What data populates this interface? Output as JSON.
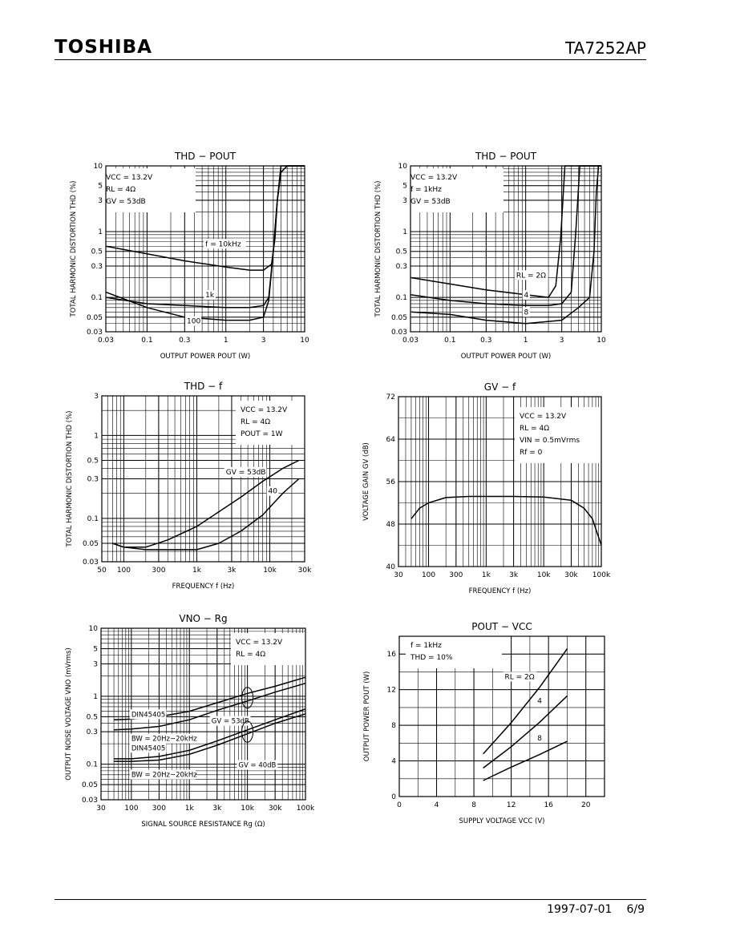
{
  "header": {
    "logo_text": "TOSHIBA",
    "part_number": "TA7252AP"
  },
  "footer": {
    "date": "1997-07-01",
    "page": "6/9"
  },
  "chart_data": [
    {
      "id": "thd-pout-freq",
      "type": "line",
      "title": "THD − POUT",
      "xlabel": "OUTPUT POWER POUT (W)",
      "ylabel": "TOTAL HARMONIC DISTORTION THD (%)",
      "xscale": "log",
      "yscale": "log",
      "xlim": [
        0.03,
        10
      ],
      "ylim": [
        0.03,
        10
      ],
      "xticks": [
        0.03,
        0.1,
        0.3,
        1,
        3,
        10
      ],
      "xtick_labels": [
        "0.03",
        "0.1",
        "0.3",
        "1",
        "3",
        "10"
      ],
      "yticks": [
        0.03,
        0.05,
        0.1,
        0.3,
        0.5,
        1,
        3,
        5,
        10
      ],
      "ytick_labels": [
        "0.03",
        "0.05",
        "0.1",
        "0.3",
        "0.5",
        "1",
        "3",
        "5",
        "10"
      ],
      "conditions": [
        "VCC = 13.2V",
        "RL = 4Ω",
        "GV = 53dB"
      ],
      "series": [
        {
          "name": "f = 10kHz",
          "label_at": [
            0.55,
            0.6
          ],
          "x": [
            0.03,
            0.1,
            0.3,
            1,
            2,
            3,
            3.8,
            4.2,
            4.5,
            5,
            6,
            6.8,
            10
          ],
          "y": [
            0.6,
            0.46,
            0.36,
            0.29,
            0.26,
            0.26,
            0.32,
            0.8,
            3,
            8,
            10,
            10,
            10
          ]
        },
        {
          "name": "1k",
          "label_at": [
            0.55,
            0.1
          ],
          "x": [
            0.03,
            0.1,
            0.3,
            1,
            2,
            3,
            3.5,
            4,
            4.5,
            5,
            6,
            10
          ],
          "y": [
            0.1,
            0.08,
            0.075,
            0.07,
            0.07,
            0.075,
            0.1,
            0.5,
            3,
            8,
            10,
            10
          ]
        },
        {
          "name": "100",
          "label_at": [
            0.32,
            0.04
          ],
          "x": [
            0.03,
            0.1,
            0.3,
            1,
            2,
            3,
            3.5,
            4,
            4.5,
            5,
            10
          ],
          "y": [
            0.12,
            0.07,
            0.05,
            0.045,
            0.045,
            0.05,
            0.09,
            0.5,
            3,
            10,
            10
          ]
        }
      ]
    },
    {
      "id": "thd-pout-load",
      "type": "line",
      "title": "THD − POUT",
      "xlabel": "OUTPUT POWER POUT (W)",
      "ylabel": "TOTAL HARMONIC DISTORTION THD (%)",
      "xscale": "log",
      "yscale": "log",
      "xlim": [
        0.03,
        10
      ],
      "ylim": [
        0.03,
        10
      ],
      "xticks": [
        0.03,
        0.1,
        0.3,
        1,
        3,
        10
      ],
      "xtick_labels": [
        "0.03",
        "0.1",
        "0.3",
        "1",
        "3",
        "10"
      ],
      "yticks": [
        0.03,
        0.05,
        0.1,
        0.3,
        0.5,
        1,
        3,
        5,
        10
      ],
      "ytick_labels": [
        "0.03",
        "0.05",
        "0.1",
        "0.3",
        "0.5",
        "1",
        "3",
        "5",
        "10"
      ],
      "conditions": [
        "VCC = 13.2V",
        "f = 1kHz",
        "GV = 53dB"
      ],
      "series": [
        {
          "name": "RL = 2Ω",
          "label_at": [
            0.75,
            0.2
          ],
          "x": [
            0.03,
            0.1,
            0.3,
            1,
            2,
            2.5,
            2.9,
            3.3,
            4,
            10
          ],
          "y": [
            0.2,
            0.16,
            0.13,
            0.11,
            0.1,
            0.15,
            0.8,
            10,
            10,
            10
          ]
        },
        {
          "name": "4",
          "label_at": [
            0.95,
            0.1
          ],
          "x": [
            0.03,
            0.1,
            0.3,
            1,
            2,
            3,
            4,
            4.6,
            5.2,
            6,
            10
          ],
          "y": [
            0.11,
            0.09,
            0.08,
            0.075,
            0.075,
            0.08,
            0.12,
            1,
            10,
            10,
            10
          ]
        },
        {
          "name": "8",
          "label_at": [
            0.95,
            0.055
          ],
          "x": [
            0.03,
            0.1,
            0.3,
            1,
            3,
            5,
            7,
            8,
            8.6,
            9.2,
            10
          ],
          "y": [
            0.06,
            0.055,
            0.045,
            0.04,
            0.045,
            0.07,
            0.1,
            0.5,
            4,
            10,
            10
          ]
        }
      ]
    },
    {
      "id": "thd-f",
      "type": "line",
      "title": "THD − f",
      "xlabel": "FREQUENCY f (Hz)",
      "ylabel": "TOTAL HARMONIC DISTORTION THD (%)",
      "xscale": "log",
      "yscale": "log",
      "xlim": [
        50,
        30000
      ],
      "ylim": [
        0.03,
        3
      ],
      "xticks": [
        50,
        100,
        300,
        1000,
        3000,
        10000,
        30000
      ],
      "xtick_labels": [
        "50",
        "100",
        "300",
        "1k",
        "3k",
        "10k",
        "30k"
      ],
      "yticks": [
        0.03,
        0.05,
        0.1,
        0.3,
        0.5,
        1,
        3
      ],
      "ytick_labels": [
        "0.03",
        "0.05",
        "0.1",
        "0.3",
        "0.5",
        "1",
        "3"
      ],
      "conditions": [
        "VCC = 13.2V",
        "RL = 4Ω",
        "POUT = 1W"
      ],
      "series": [
        {
          "name": "GV = 53dB",
          "label_at": [
            2500,
            0.34
          ],
          "x": [
            70,
            100,
            200,
            400,
            1000,
            2000,
            4000,
            8000,
            15000,
            25000
          ],
          "y": [
            0.05,
            0.045,
            0.045,
            0.055,
            0.08,
            0.12,
            0.18,
            0.28,
            0.4,
            0.5
          ]
        },
        {
          "name": "40",
          "label_at": [
            9500,
            0.2
          ],
          "x": [
            70,
            100,
            200,
            400,
            1000,
            2000,
            4000,
            8000,
            15000,
            25000
          ],
          "y": [
            0.05,
            0.045,
            0.042,
            0.042,
            0.042,
            0.05,
            0.07,
            0.11,
            0.2,
            0.3
          ]
        }
      ]
    },
    {
      "id": "gv-f",
      "type": "line",
      "title": "GV − f",
      "xlabel": "FREQUENCY f (Hz)",
      "ylabel": "VOLTAGE GAIN GV (dB)",
      "xscale": "log",
      "yscale": "linear",
      "xlim": [
        30,
        100000
      ],
      "ylim": [
        40,
        72
      ],
      "xticks": [
        30,
        100,
        300,
        1000,
        3000,
        10000,
        30000,
        100000
      ],
      "xtick_labels": [
        "30",
        "100",
        "300",
        "1k",
        "3k",
        "10k",
        "30k",
        "100k"
      ],
      "yticks": [
        40,
        48,
        56,
        64,
        72
      ],
      "ytick_labels": [
        "40",
        "48",
        "56",
        "64",
        "72"
      ],
      "conditions": [
        "VCC = 13.2V",
        "RL = 4Ω",
        "VIN = 0.5mVrms",
        "Rf = 0"
      ],
      "series": [
        {
          "name": "",
          "x": [
            50,
            70,
            100,
            200,
            500,
            1000,
            3000,
            10000,
            30000,
            50000,
            70000,
            100000
          ],
          "y": [
            49,
            51,
            52,
            53,
            53.2,
            53.2,
            53.2,
            53.1,
            52.5,
            51,
            49,
            44
          ]
        }
      ]
    },
    {
      "id": "vno-rg",
      "type": "line",
      "title": "VNO − Rg",
      "xlabel": "SIGNAL SOURCE RESISTANCE Rg (Ω)",
      "ylabel": "OUTPUT NOISE VOLTAGE VNO (mVrms)",
      "xscale": "log",
      "yscale": "log",
      "xlim": [
        30,
        100000
      ],
      "ylim": [
        0.03,
        10
      ],
      "xticks": [
        30,
        100,
        300,
        1000,
        3000,
        10000,
        30000,
        100000
      ],
      "xtick_labels": [
        "30",
        "100",
        "300",
        "1k",
        "3k",
        "10k",
        "30k",
        "100k"
      ],
      "yticks": [
        0.03,
        0.05,
        0.1,
        0.3,
        0.5,
        1,
        3,
        5,
        10
      ],
      "ytick_labels": [
        "0.03",
        "0.05",
        "0.1",
        "0.3",
        "0.5",
        "1",
        "3",
        "5",
        "10"
      ],
      "conditions": [
        "VCC = 13.2V",
        "RL = 4Ω"
      ],
      "annotations": [
        "DIN45405",
        "BW = 20Hz~20kHz",
        "DIN45405",
        "BW = 20Hz~20kHz",
        "GV = 53dB",
        "GV = 40dB"
      ],
      "series": [
        {
          "name": "GV = 53dB DIN45405",
          "x": [
            50,
            100,
            300,
            1000,
            3000,
            10000,
            30000,
            100000
          ],
          "y": [
            0.45,
            0.46,
            0.5,
            0.6,
            0.8,
            1.1,
            1.4,
            1.9
          ]
        },
        {
          "name": "GV = 53dB BW = 20Hz~20kHz",
          "x": [
            50,
            100,
            300,
            1000,
            3000,
            10000,
            30000,
            100000
          ],
          "y": [
            0.32,
            0.33,
            0.36,
            0.45,
            0.62,
            0.85,
            1.15,
            1.55
          ]
        },
        {
          "name": "GV = 40dB DIN45405",
          "x": [
            50,
            100,
            300,
            1000,
            3000,
            10000,
            30000,
            100000
          ],
          "y": [
            0.12,
            0.12,
            0.13,
            0.16,
            0.22,
            0.32,
            0.45,
            0.65
          ]
        },
        {
          "name": "GV = 40dB BW = 20Hz~20kHz",
          "x": [
            50,
            100,
            300,
            1000,
            3000,
            10000,
            30000,
            100000
          ],
          "y": [
            0.11,
            0.11,
            0.115,
            0.14,
            0.19,
            0.28,
            0.4,
            0.55
          ]
        }
      ]
    },
    {
      "id": "pout-vcc",
      "type": "line",
      "title": "POUT − VCC",
      "xlabel": "SUPPLY VOLTAGE VCC (V)",
      "ylabel": "OUTPUT POWER POUT (W)",
      "xscale": "linear",
      "yscale": "linear",
      "xlim": [
        0,
        22
      ],
      "ylim": [
        0,
        18
      ],
      "xticks": [
        0,
        4,
        8,
        12,
        16,
        20
      ],
      "xtick_labels": [
        "0",
        "4",
        "8",
        "12",
        "16",
        "20"
      ],
      "yticks": [
        0,
        4,
        8,
        12,
        16
      ],
      "ytick_labels": [
        "0",
        "4",
        "8",
        "12",
        "16"
      ],
      "conditions": [
        "f = 1kHz",
        "THD = 10%"
      ],
      "series": [
        {
          "name": "RL = 2Ω",
          "label_at": [
            11.3,
            13.2
          ],
          "x": [
            9,
            12,
            15,
            18
          ],
          "y": [
            4.8,
            8.3,
            12.2,
            16.6
          ]
        },
        {
          "name": "4",
          "label_at": [
            14.8,
            10.5
          ],
          "x": [
            9,
            12,
            15,
            18
          ],
          "y": [
            3.2,
            5.6,
            8.3,
            11.3
          ]
        },
        {
          "name": "8",
          "label_at": [
            14.8,
            6.3
          ],
          "x": [
            9,
            12,
            15,
            18
          ],
          "y": [
            1.8,
            3.3,
            4.7,
            6.2
          ]
        }
      ]
    }
  ]
}
